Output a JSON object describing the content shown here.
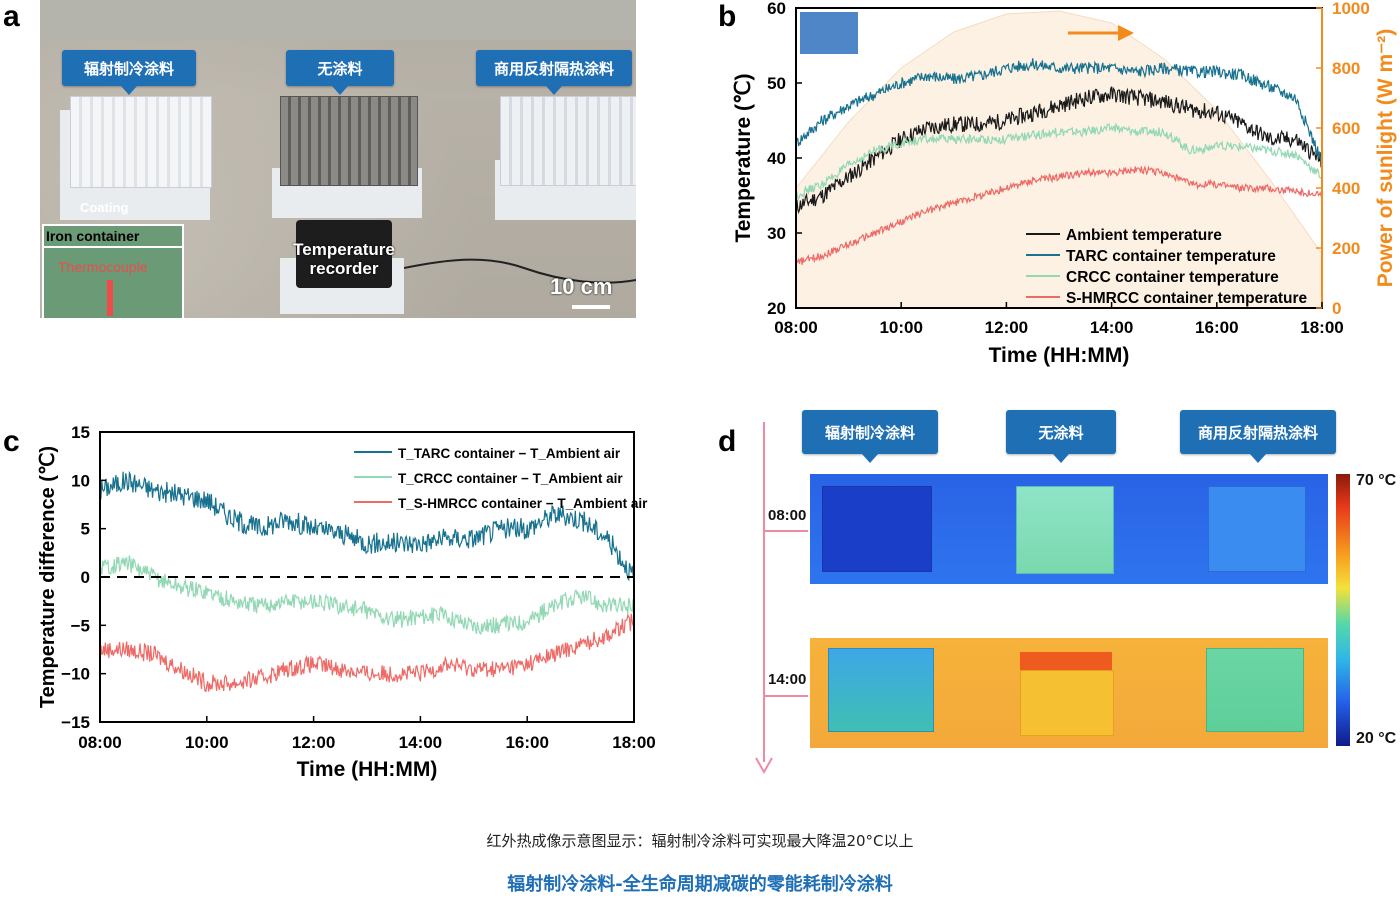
{
  "panels": {
    "a": {
      "letter": "a",
      "callouts": [
        "辐射制冷涂料",
        "无涂料",
        "商用反射隔热涂料"
      ],
      "coating_label": "Coating",
      "inset_title": "Iron container",
      "inset_label": "Thermocouple",
      "recorder_label_1": "Temperature",
      "recorder_label_2": "recorder",
      "scale_label": "10 cm"
    },
    "b": {
      "letter": "b"
    },
    "c": {
      "letter": "c"
    },
    "d": {
      "letter": "d",
      "callouts": [
        "辐射制冷涂料",
        "无涂料",
        "商用反射隔热涂料"
      ],
      "time_labels": [
        "08:00",
        "14:00"
      ],
      "colorbar_max": "70 °C",
      "colorbar_min": "20 °C"
    }
  },
  "captions": {
    "subtitle": "红外热成像示意图显示：辐射制冷涂料可实现最大降温20°C以上",
    "title": "辐射制冷涂料-全生命周期减碳的零能耗制冷涂料"
  },
  "colors": {
    "ambient": "#1a1a1a",
    "tarc": "#17718f",
    "crcc": "#93d8b4",
    "shmrcc": "#ee6a66",
    "sunlight": "#f28a1c",
    "callout": "#1f6fb5"
  },
  "chart_data": [
    {
      "type": "line",
      "panel": "b",
      "xlabel": "Time (HH:MM)",
      "ylabel": "Temperature (℃)",
      "ylabel_right": "Power of sunlight (W m⁻²)",
      "xticks": [
        "08:00",
        "10:00",
        "12:00",
        "14:00",
        "16:00",
        "18:00"
      ],
      "yticks": [
        20,
        30,
        40,
        50,
        60
      ],
      "yticks_right": [
        0,
        200,
        400,
        600,
        800,
        1000
      ],
      "xlim": [
        8,
        18
      ],
      "ylim": [
        20,
        60
      ],
      "ylim_right": [
        0,
        1000
      ],
      "legend_position": "bottom-right",
      "series": [
        {
          "name": "Ambient temperature",
          "x": [
            8,
            8.5,
            9,
            9.5,
            10,
            10.5,
            11,
            11.5,
            12,
            12.5,
            13,
            13.5,
            14,
            14.5,
            15,
            15.5,
            16,
            16.5,
            17,
            17.5,
            18
          ],
          "y": [
            33.5,
            35,
            37.5,
            40,
            42.5,
            44,
            44.5,
            44.5,
            45,
            46,
            47,
            48,
            48.5,
            48,
            47.5,
            46.5,
            46,
            44.5,
            42.5,
            42.5,
            39.5
          ]
        },
        {
          "name": "TARC container temperature",
          "x": [
            8,
            8.5,
            9,
            9.5,
            10,
            10.5,
            11,
            11.5,
            12,
            12.5,
            13,
            13.5,
            14,
            14.5,
            15,
            15.5,
            16,
            16.5,
            17,
            17.5,
            18
          ],
          "y": [
            42,
            45,
            47,
            48.5,
            50,
            51,
            50.5,
            51,
            52,
            52.5,
            52,
            52,
            52,
            51.5,
            52,
            51.5,
            51.5,
            51,
            49.5,
            48,
            39.5
          ]
        },
        {
          "name": "CRCC container temperature",
          "x": [
            8,
            8.5,
            9,
            9.5,
            10,
            10.5,
            11,
            11.5,
            12,
            12.5,
            13,
            13.5,
            14,
            14.5,
            15,
            15.5,
            16,
            16.5,
            17,
            17.5,
            18
          ],
          "y": [
            35,
            36.5,
            39,
            41,
            42,
            42.5,
            42.5,
            42.5,
            42.5,
            43,
            43.5,
            43.5,
            44,
            43.5,
            43.5,
            41,
            41.5,
            41.5,
            41,
            40.5,
            37.5
          ]
        },
        {
          "name": "S-HMRCC container temperature",
          "x": [
            8,
            8.5,
            9,
            9.5,
            10,
            10.5,
            11,
            11.5,
            12,
            12.5,
            13,
            13.5,
            14,
            14.5,
            15,
            15.5,
            16,
            16.5,
            17,
            17.5,
            18
          ],
          "y": [
            26,
            27,
            28.5,
            30,
            31.5,
            33,
            34,
            35,
            36,
            37,
            37.5,
            38,
            38,
            38.5,
            38,
            36.5,
            36.5,
            36,
            36,
            35.5,
            35
          ]
        },
        {
          "x": [
            8,
            9,
            10,
            11,
            12,
            13,
            14,
            15,
            16,
            17,
            18
          ],
          "y": [
            400,
            620,
            800,
            920,
            980,
            990,
            950,
            830,
            660,
            430,
            180
          ]
        }
      ]
    },
    {
      "type": "line",
      "panel": "c",
      "xlabel": "Time (HH:MM)",
      "ylabel": "Temperature difference (℃)",
      "xticks": [
        "08:00",
        "10:00",
        "12:00",
        "14:00",
        "16:00",
        "18:00"
      ],
      "yticks": [
        -15,
        -10,
        -5,
        0,
        5,
        10,
        15
      ],
      "xlim": [
        8,
        18
      ],
      "ylim": [
        -15,
        15
      ],
      "legend_position": "top-right",
      "reference_line": 0,
      "series": [
        {
          "name": "T_TARC container − T_Ambient air",
          "x": [
            8,
            8.5,
            9,
            9.5,
            10,
            10.5,
            11,
            11.5,
            12,
            12.5,
            13,
            13.5,
            14,
            14.5,
            15,
            15.5,
            16,
            16.5,
            17,
            17.5,
            18
          ],
          "y": [
            9,
            10,
            9,
            8.5,
            8,
            6,
            5,
            6,
            5,
            4.5,
            3.5,
            3.5,
            3.5,
            4,
            4,
            5,
            5,
            6.5,
            6,
            4,
            0
          ]
        },
        {
          "name": "T_CRCC container − T_Ambient air",
          "x": [
            8,
            8.5,
            9,
            9.5,
            10,
            10.5,
            11,
            11.5,
            12,
            12.5,
            13,
            13.5,
            14,
            14.5,
            15,
            15.5,
            16,
            16.5,
            17,
            17.5,
            18
          ],
          "y": [
            1,
            1.5,
            0,
            -1,
            -1.5,
            -2.5,
            -3,
            -2.5,
            -2.5,
            -3,
            -3.5,
            -4.5,
            -4,
            -4,
            -5,
            -5,
            -4.5,
            -3,
            -2,
            -3,
            -3
          ]
        },
        {
          "name": "T_S-HMRCC container − T_Ambient air",
          "x": [
            8,
            8.5,
            9,
            9.5,
            10,
            10.5,
            11,
            11.5,
            12,
            12.5,
            13,
            13.5,
            14,
            14.5,
            15,
            15.5,
            16,
            16.5,
            17,
            17.5,
            18
          ],
          "y": [
            -7.5,
            -7.5,
            -8,
            -9.5,
            -11,
            -11,
            -10.5,
            -9.5,
            -9,
            -9.5,
            -10,
            -10,
            -10,
            -9,
            -9.5,
            -9.5,
            -9,
            -8,
            -7,
            -6,
            -4.5
          ]
        }
      ]
    }
  ]
}
